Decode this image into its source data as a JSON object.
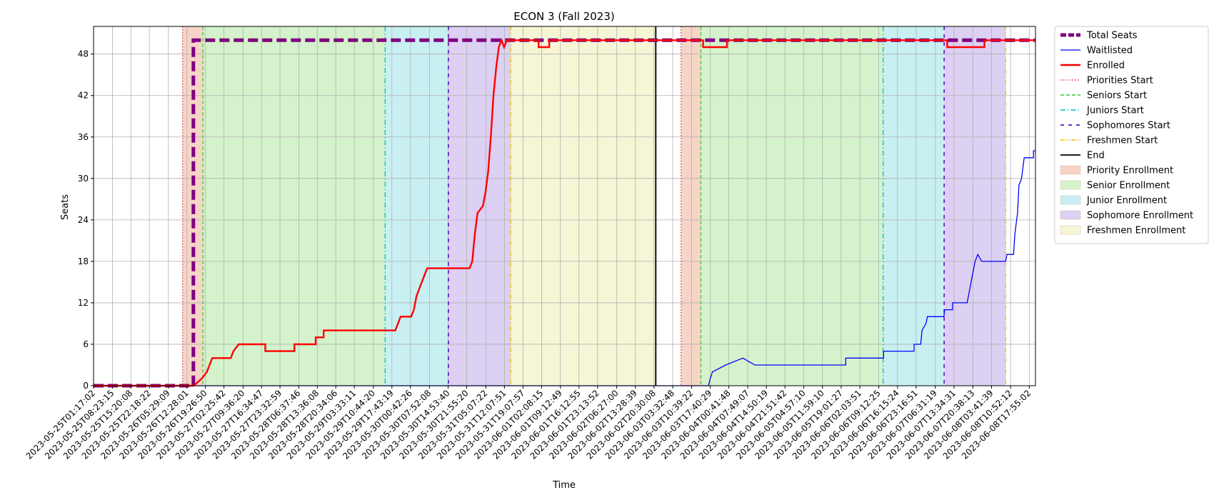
{
  "chart_data": {
    "type": "line",
    "title": "ECON 3 (Fall 2023)",
    "xlabel": "Time",
    "ylabel": "Seats",
    "xlim": [
      "2023-05-25T01:17:02",
      "2023-06-08T20:15:00"
    ],
    "ylim": [
      0,
      52
    ],
    "yticks": [
      0,
      6,
      12,
      18,
      24,
      30,
      36,
      42,
      48
    ],
    "grid": true,
    "legend_position": "outside-right",
    "xtick_labels": [
      "2023-05-25T01:17:02",
      "2023-05-25T08:23:15",
      "2023-05-25T15:20:08",
      "2023-05-25T22:18:22",
      "2023-05-26T05:29:09",
      "2023-05-26T12:28:01",
      "2023-05-26T19:26:50",
      "2023-05-27T02:25:42",
      "2023-05-27T09:36:20",
      "2023-05-27T16:34:47",
      "2023-05-27T23:32:59",
      "2023-05-28T06:37:46",
      "2023-05-28T13:36:08",
      "2023-05-28T20:34:06",
      "2023-05-29T03:33:11",
      "2023-05-29T10:44:20",
      "2023-05-29T17:43:19",
      "2023-05-30T00:42:26",
      "2023-05-30T07:52:08",
      "2023-05-30T14:53:40",
      "2023-05-30T21:55:20",
      "2023-05-31T05:07:22",
      "2023-05-31T12:07:51",
      "2023-05-31T19:07:57",
      "2023-06-01T02:08:15",
      "2023-06-01T09:12:49",
      "2023-06-01T16:12:55",
      "2023-06-01T23:13:52",
      "2023-06-02T06:27:00",
      "2023-06-02T13:28:39",
      "2023-06-02T20:30:08",
      "2023-06-03T03:32:48",
      "2023-06-03T10:39:22",
      "2023-06-03T17:40:29",
      "2023-06-04T00:41:48",
      "2023-06-04T07:49:07",
      "2023-06-04T14:50:19",
      "2023-06-04T21:51:42",
      "2023-06-05T04:57:10",
      "2023-06-05T11:59:10",
      "2023-06-05T19:01:27",
      "2023-06-06T02:03:51",
      "2023-06-06T09:12:25",
      "2023-06-06T16:15:24",
      "2023-06-06T23:16:51",
      "2023-06-07T06:31:19",
      "2023-06-07T13:34:31",
      "2023-06-07T20:38:13",
      "2023-06-08T03:41:39",
      "2023-06-08T10:52:12",
      "2023-06-08T17:55:02"
    ],
    "regions": [
      {
        "name": "Priority Enrollment",
        "color": "#f6d5c6",
        "start": "2023-05-26T10:50:00",
        "end": "2023-05-26T18:30:00"
      },
      {
        "name": "Senior Enrollment",
        "color": "#d4f3cc",
        "start": "2023-05-26T18:30:00",
        "end": "2023-05-29T15:10:00"
      },
      {
        "name": "Junior Enrollment",
        "color": "#c8f0f2",
        "start": "2023-05-29T15:10:00",
        "end": "2023-05-30T15:00:00"
      },
      {
        "name": "Sophomore Enrollment",
        "color": "#dcd0f3",
        "start": "2023-05-30T15:00:00",
        "end": "2023-05-31T14:30:00"
      },
      {
        "name": "Freshmen Enrollment",
        "color": "#f6f6d6",
        "start": "2023-05-31T14:30:00",
        "end": "2023-06-02T21:10:00"
      },
      {
        "name": "Priority Enrollment",
        "color": "#f6d5c6",
        "start": "2023-06-03T06:40:00",
        "end": "2023-06-03T14:10:00"
      },
      {
        "name": "Senior Enrollment",
        "color": "#d4f3cc",
        "start": "2023-06-03T14:10:00",
        "end": "2023-06-06T10:50:00"
      },
      {
        "name": "Junior Enrollment",
        "color": "#c8f0f2",
        "start": "2023-06-06T10:50:00",
        "end": "2023-06-07T09:50:00"
      },
      {
        "name": "Sophomore Enrollment",
        "color": "#dcd0f3",
        "start": "2023-06-07T09:50:00",
        "end": "2023-06-08T09:00:00"
      }
    ],
    "vlines": [
      {
        "name": "Priorities Start",
        "color": "#e53935",
        "dash": "1.5,2.5",
        "x": "2023-05-26T10:50:00"
      },
      {
        "name": "Seniors Start",
        "color": "#33cc33",
        "dash": "5,3",
        "x": "2023-05-26T18:30:00"
      },
      {
        "name": "Juniors Start",
        "color": "#00bfbf",
        "dash": "7,3,1.5,3",
        "x": "2023-05-29T15:10:00"
      },
      {
        "name": "Sophomores Start",
        "color": "#5a10c8",
        "dash": "5,6",
        "x": "2023-05-30T15:00:00"
      },
      {
        "name": "Freshmen Start",
        "color": "#e6c200",
        "dash": "6,2,1.5,2,1.5,2",
        "x": "2023-05-31T14:30:00"
      },
      {
        "name": "End",
        "color": "#000000",
        "dash": "",
        "x": "2023-06-02T21:10:00"
      },
      {
        "name": "Priorities Start",
        "color": "#e53935",
        "dash": "1.5,2.5",
        "x": "2023-06-03T06:40:00"
      },
      {
        "name": "Seniors Start",
        "color": "#33cc33",
        "dash": "5,3",
        "x": "2023-06-03T14:10:00"
      },
      {
        "name": "Juniors Start",
        "color": "#00bfbf",
        "dash": "7,3,1.5,3",
        "x": "2023-06-06T10:50:00"
      },
      {
        "name": "Sophomores Start",
        "color": "#5a10c8",
        "dash": "5,6",
        "x": "2023-06-07T09:50:00"
      },
      {
        "name": "Freshmen Start",
        "color": "#e6c200",
        "dash": "6,2,1.5,2,1.5,2",
        "x": "2023-06-08T09:00:00"
      }
    ],
    "series": [
      {
        "name": "Total Seats",
        "color": "#800080",
        "style": "dashed-thick",
        "points": [
          [
            "2023-05-25T01:17:02",
            0
          ],
          [
            "2023-05-26T14:55:00",
            0
          ],
          [
            "2023-05-26T14:55:00",
            50
          ],
          [
            "2023-06-08T20:15:00",
            50
          ]
        ]
      },
      {
        "name": "Waitlisted",
        "color": "#0000ff",
        "style": "solid-thin",
        "points": [
          [
            "2023-05-25T01:17:02",
            0
          ],
          [
            "2023-06-03T17:00:00",
            0
          ],
          [
            "2023-06-03T17:40:00",
            1
          ],
          [
            "2023-06-03T18:30:00",
            2
          ],
          [
            "2023-06-03T23:30:00",
            3
          ],
          [
            "2023-06-04T06:00:00",
            4
          ],
          [
            "2023-06-04T10:30:00",
            3
          ],
          [
            "2023-06-05T20:45:00",
            3
          ],
          [
            "2023-06-05T20:45:00",
            4
          ],
          [
            "2023-06-06T11:00:00",
            4
          ],
          [
            "2023-06-06T11:00:00",
            5
          ],
          [
            "2023-06-06T22:30:00",
            5
          ],
          [
            "2023-06-06T22:30:00",
            6
          ],
          [
            "2023-06-07T01:00:00",
            6
          ],
          [
            "2023-06-07T01:30:00",
            8
          ],
          [
            "2023-06-07T03:00:00",
            9
          ],
          [
            "2023-06-07T03:30:00",
            10
          ],
          [
            "2023-06-07T09:45:00",
            10
          ],
          [
            "2023-06-07T10:00:00",
            11
          ],
          [
            "2023-06-07T13:00:00",
            11
          ],
          [
            "2023-06-07T13:00:00",
            12
          ],
          [
            "2023-06-07T18:30:00",
            12
          ],
          [
            "2023-06-07T19:30:00",
            14
          ],
          [
            "2023-06-07T20:30:00",
            16
          ],
          [
            "2023-06-07T21:30:00",
            18
          ],
          [
            "2023-06-07T22:30:00",
            19
          ],
          [
            "2023-06-08T00:00:00",
            18
          ],
          [
            "2023-06-08T09:00:00",
            18
          ],
          [
            "2023-06-08T09:30:00",
            19
          ],
          [
            "2023-06-08T12:00:00",
            19
          ],
          [
            "2023-06-08T12:30:00",
            22
          ],
          [
            "2023-06-08T13:30:00",
            25
          ],
          [
            "2023-06-08T14:00:00",
            29
          ],
          [
            "2023-06-08T15:00:00",
            30
          ],
          [
            "2023-06-08T16:00:00",
            33
          ],
          [
            "2023-06-08T19:30:00",
            33
          ],
          [
            "2023-06-08T19:30:00",
            34
          ],
          [
            "2023-06-08T20:15:00",
            34
          ]
        ]
      },
      {
        "name": "Enrolled",
        "color": "#ff0000",
        "style": "solid-thick",
        "points": [
          [
            "2023-05-25T01:17:02",
            0
          ],
          [
            "2023-05-26T15:00:00",
            0
          ],
          [
            "2023-05-26T18:00:00",
            1
          ],
          [
            "2023-05-26T20:00:00",
            2
          ],
          [
            "2023-05-26T22:00:00",
            4
          ],
          [
            "2023-05-27T05:00:00",
            4
          ],
          [
            "2023-05-27T06:00:00",
            5
          ],
          [
            "2023-05-27T08:00:00",
            6
          ],
          [
            "2023-05-27T18:00:00",
            6
          ],
          [
            "2023-05-27T18:00:00",
            5
          ],
          [
            "2023-05-28T05:00:00",
            5
          ],
          [
            "2023-05-28T05:00:00",
            6
          ],
          [
            "2023-05-28T13:00:00",
            6
          ],
          [
            "2023-05-28T13:00:00",
            7
          ],
          [
            "2023-05-28T16:00:00",
            7
          ],
          [
            "2023-05-28T16:00:00",
            8
          ],
          [
            "2023-05-29T19:00:00",
            8
          ],
          [
            "2023-05-29T21:00:00",
            10
          ],
          [
            "2023-05-30T01:00:00",
            10
          ],
          [
            "2023-05-30T02:00:00",
            11
          ],
          [
            "2023-05-30T03:00:00",
            13
          ],
          [
            "2023-05-30T05:00:00",
            15
          ],
          [
            "2023-05-30T07:00:00",
            17
          ],
          [
            "2023-05-30T23:00:00",
            17
          ],
          [
            "2023-05-31T00:00:00",
            18
          ],
          [
            "2023-05-31T01:00:00",
            22
          ],
          [
            "2023-05-31T02:00:00",
            25
          ],
          [
            "2023-05-31T04:00:00",
            26
          ],
          [
            "2023-05-31T05:00:00",
            28
          ],
          [
            "2023-05-31T06:00:00",
            31
          ],
          [
            "2023-05-31T07:00:00",
            36
          ],
          [
            "2023-05-31T08:00:00",
            42
          ],
          [
            "2023-05-31T09:00:00",
            46
          ],
          [
            "2023-05-31T10:00:00",
            49
          ],
          [
            "2023-05-31T11:00:00",
            50
          ],
          [
            "2023-05-31T12:00:00",
            49
          ],
          [
            "2023-05-31T13:00:00",
            50
          ],
          [
            "2023-06-01T01:00:00",
            50
          ],
          [
            "2023-06-01T01:00:00",
            49
          ],
          [
            "2023-06-01T05:00:00",
            49
          ],
          [
            "2023-06-01T05:00:00",
            50
          ],
          [
            "2023-06-03T15:00:00",
            50
          ],
          [
            "2023-06-03T15:00:00",
            49
          ],
          [
            "2023-06-04T00:00:00",
            49
          ],
          [
            "2023-06-04T00:00:00",
            50
          ],
          [
            "2023-06-07T11:00:00",
            50
          ],
          [
            "2023-06-07T11:00:00",
            49
          ],
          [
            "2023-06-08T01:00:00",
            49
          ],
          [
            "2023-06-08T01:00:00",
            50
          ],
          [
            "2023-06-08T20:15:00",
            50
          ]
        ]
      }
    ],
    "legend": [
      {
        "label": "Total Seats",
        "kind": "line",
        "color": "#800080",
        "width": 5,
        "dash": "8,3"
      },
      {
        "label": "Waitlisted",
        "kind": "line",
        "color": "#0000ff",
        "width": 1.2,
        "dash": ""
      },
      {
        "label": "Enrolled",
        "kind": "line",
        "color": "#ff0000",
        "width": 2.4,
        "dash": ""
      },
      {
        "label": "Priorities Start",
        "kind": "line",
        "color": "#e53935",
        "width": 1.4,
        "dash": "1.5,2.5"
      },
      {
        "label": "Seniors Start",
        "kind": "line",
        "color": "#33cc33",
        "width": 1.4,
        "dash": "5,3"
      },
      {
        "label": "Juniors Start",
        "kind": "line",
        "color": "#00bfbf",
        "width": 1.4,
        "dash": "7,3,1.5,3"
      },
      {
        "label": "Sophomores Start",
        "kind": "line",
        "color": "#5a10c8",
        "width": 1.8,
        "dash": "5,6"
      },
      {
        "label": "Freshmen Start",
        "kind": "line",
        "color": "#e6c200",
        "width": 1.4,
        "dash": "6,2,1.5,2,1.5,2"
      },
      {
        "label": "End",
        "kind": "line",
        "color": "#000000",
        "width": 1.8,
        "dash": ""
      },
      {
        "label": "Priority Enrollment",
        "kind": "patch",
        "color": "#f6d5c6"
      },
      {
        "label": "Senior Enrollment",
        "kind": "patch",
        "color": "#d4f3cc"
      },
      {
        "label": "Junior Enrollment",
        "kind": "patch",
        "color": "#c8f0f2"
      },
      {
        "label": "Sophomore Enrollment",
        "kind": "patch",
        "color": "#dcd0f3"
      },
      {
        "label": "Freshmen Enrollment",
        "kind": "patch",
        "color": "#f6f6d6"
      }
    ]
  }
}
